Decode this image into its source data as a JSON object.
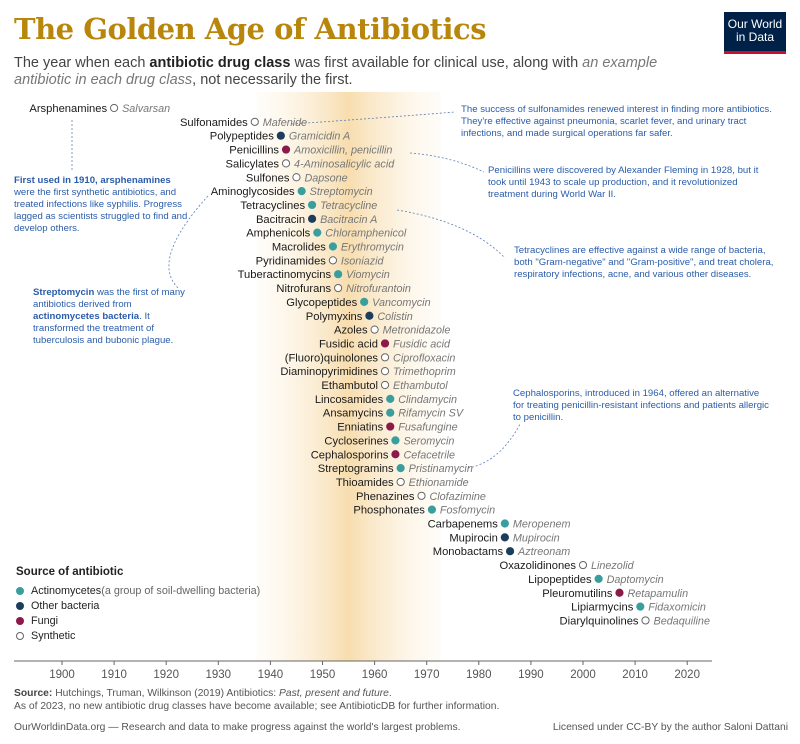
{
  "title": "The Golden Age of Antibiotics",
  "subtitle": {
    "p1": "The year when each ",
    "bold": "antibiotic drug class",
    "p2": " was first available for clinical use, along with ",
    "ital": "an example antibiotic in each drug class",
    "p3": ", not necessarily the first."
  },
  "logo": {
    "line1": "Our World",
    "line2": "in Data"
  },
  "colors": {
    "actinomycetes": "#3a9e9e",
    "other_bacteria": "#1d3d5c",
    "fungi": "#8b1a4a",
    "synthetic": "#ffffff",
    "highlight": "#f6d7a0"
  },
  "chart_data": {
    "type": "scatter",
    "x_axis": {
      "min": 1893,
      "max": 2025,
      "ticks": [
        1900,
        1910,
        1920,
        1930,
        1940,
        1950,
        1960,
        1970,
        1980,
        1990,
        2000,
        2010,
        2020
      ]
    },
    "highlight_range": [
      1940,
      1970
    ],
    "points": [
      {
        "cls": "Arsphenamines",
        "ex": "Salvarsan",
        "year": 1910,
        "src": "synthetic"
      },
      {
        "cls": "Sulfonamides",
        "ex": "Mafenide",
        "year": 1937,
        "src": "synthetic"
      },
      {
        "cls": "Polypeptides",
        "ex": "Gramicidin A",
        "year": 1942,
        "src": "other_bacteria"
      },
      {
        "cls": "Penicillins",
        "ex": "Amoxicillin, penicillin",
        "year": 1943,
        "src": "fungi"
      },
      {
        "cls": "Salicylates",
        "ex": "4-Aminosalicylic acid",
        "year": 1943,
        "src": "synthetic"
      },
      {
        "cls": "Sulfones",
        "ex": "Dapsone",
        "year": 1945,
        "src": "synthetic"
      },
      {
        "cls": "Aminoglycosides",
        "ex": "Streptomycin",
        "year": 1946,
        "src": "actinomycetes"
      },
      {
        "cls": "Tetracyclines",
        "ex": "Tetracycline",
        "year": 1948,
        "src": "actinomycetes"
      },
      {
        "cls": "Bacitracin",
        "ex": "Bacitracin A",
        "year": 1948,
        "src": "other_bacteria"
      },
      {
        "cls": "Amphenicols",
        "ex": "Chloramphenicol",
        "year": 1949,
        "src": "actinomycetes"
      },
      {
        "cls": "Macrolides",
        "ex": "Erythromycin",
        "year": 1952,
        "src": "actinomycetes"
      },
      {
        "cls": "Pyridinamides",
        "ex": "Isoniazid",
        "year": 1952,
        "src": "synthetic"
      },
      {
        "cls": "Tuberactinomycins",
        "ex": "Viomycin",
        "year": 1953,
        "src": "actinomycetes"
      },
      {
        "cls": "Nitrofurans",
        "ex": "Nitrofurantoin",
        "year": 1953,
        "src": "synthetic"
      },
      {
        "cls": "Glycopeptides",
        "ex": "Vancomycin",
        "year": 1958,
        "src": "actinomycetes"
      },
      {
        "cls": "Polymyxins",
        "ex": "Colistin",
        "year": 1959,
        "src": "other_bacteria"
      },
      {
        "cls": "Azoles",
        "ex": "Metronidazole",
        "year": 1960,
        "src": "synthetic"
      },
      {
        "cls": "Fusidic acid",
        "ex": "Fusidic acid",
        "year": 1962,
        "src": "fungi"
      },
      {
        "cls": "(Fluoro)quinolones",
        "ex": "Ciprofloxacin",
        "year": 1962,
        "src": "synthetic"
      },
      {
        "cls": "Diaminopyrimidines",
        "ex": "Trimethoprim",
        "year": 1962,
        "src": "synthetic"
      },
      {
        "cls": "Ethambutol",
        "ex": "Ethambutol",
        "year": 1962,
        "src": "synthetic"
      },
      {
        "cls": "Lincosamides",
        "ex": "Clindamycin",
        "year": 1963,
        "src": "actinomycetes"
      },
      {
        "cls": "Ansamycins",
        "ex": "Rifamycin SV",
        "year": 1963,
        "src": "actinomycetes"
      },
      {
        "cls": "Enniatins",
        "ex": "Fusafungine",
        "year": 1963,
        "src": "fungi"
      },
      {
        "cls": "Cycloserines",
        "ex": "Seromycin",
        "year": 1964,
        "src": "actinomycetes"
      },
      {
        "cls": "Cephalosporins",
        "ex": "Cefacetrile",
        "year": 1964,
        "src": "fungi"
      },
      {
        "cls": "Streptogramins",
        "ex": "Pristinamycin",
        "year": 1965,
        "src": "actinomycetes"
      },
      {
        "cls": "Thioamides",
        "ex": "Ethionamide",
        "year": 1965,
        "src": "synthetic"
      },
      {
        "cls": "Phenazines",
        "ex": "Clofazimine",
        "year": 1969,
        "src": "synthetic"
      },
      {
        "cls": "Phosphonates",
        "ex": "Fosfomycin",
        "year": 1971,
        "src": "actinomycetes"
      },
      {
        "cls": "Carbapenems",
        "ex": "Meropenem",
        "year": 1985,
        "src": "actinomycetes"
      },
      {
        "cls": "Mupirocin",
        "ex": "Mupirocin",
        "year": 1985,
        "src": "other_bacteria"
      },
      {
        "cls": "Monobactams",
        "ex": "Aztreonam",
        "year": 1986,
        "src": "other_bacteria"
      },
      {
        "cls": "Oxazolidinones",
        "ex": "Linezolid",
        "year": 2000,
        "src": "synthetic"
      },
      {
        "cls": "Lipopeptides",
        "ex": "Daptomycin",
        "year": 2003,
        "src": "actinomycetes"
      },
      {
        "cls": "Pleuromutilins",
        "ex": "Retapamulin",
        "year": 2007,
        "src": "fungi"
      },
      {
        "cls": "Lipiarmycins",
        "ex": "Fidaxomicin",
        "year": 2011,
        "src": "actinomycetes"
      },
      {
        "cls": "Diarylquinolines",
        "ex": "Bedaquiline",
        "year": 2012,
        "src": "synthetic"
      }
    ]
  },
  "annotations": {
    "arsphenamines": {
      "b1": "First used in 1910, arsphenamines",
      "t1": " were the first synthetic antibiotics, and treated infections like syphilis. Progress lagged as scientists struggled to find and develop others."
    },
    "streptomycin": {
      "b1": "Streptomycin",
      "t1": " was the first of many antibiotics derived from ",
      "b2": "actinomycetes bacteria",
      "t2": ". It transformed the treatment of tuberculosis and bubonic plague."
    },
    "sulfonamides": {
      "t1": "The success of sulfonamides renewed interest in finding more antibiotics. They're effective against pneumonia, scarlet fever, and urinary tract infections, and made surgical operations far safer."
    },
    "penicillins": {
      "t1": "Penicillins were discovered by Alexander Fleming in 1928, but it took until 1943 to scale up production, and it revolutionized treatment during World War II."
    },
    "tetracyclines": {
      "t1": "Tetracyclines are effective against a wide range of bacteria, both \"Gram-negative\" and \"Gram-positive\", and treat cholera, respiratory infections, acne, and various other diseases."
    },
    "cephalosporins": {
      "t1": "Cephalosporins, introduced in 1964, offered an alternative for treating penicillin-resistant infections and patients allergic to penicillin."
    }
  },
  "legend": {
    "title": "Source of antibiotic",
    "items": [
      {
        "label": "Actinomycetes",
        "note": " (a group of soil-dwelling bacteria)",
        "src": "actinomycetes"
      },
      {
        "label": "Other bacteria",
        "note": "",
        "src": "other_bacteria"
      },
      {
        "label": "Fungi",
        "note": "",
        "src": "fungi"
      },
      {
        "label": "Synthetic",
        "note": "",
        "src": "synthetic"
      }
    ]
  },
  "footer": {
    "source_label": "Source:",
    "source_text": " Hutchings, Truman, Wilkinson (2019) Antibiotics: ",
    "source_italic": "Past, present and future",
    "source_end": ".",
    "note": "As of 2023, no new antibiotic drug classes have become available; see AntibioticDB for further information.",
    "site": "OurWorldinData.org",
    "tagline": " — Research and data to make progress against the world's largest problems.",
    "license_pre": "Licensed under ",
    "license_link": "CC-BY",
    "license_post": " by the author Saloni Dattani"
  }
}
